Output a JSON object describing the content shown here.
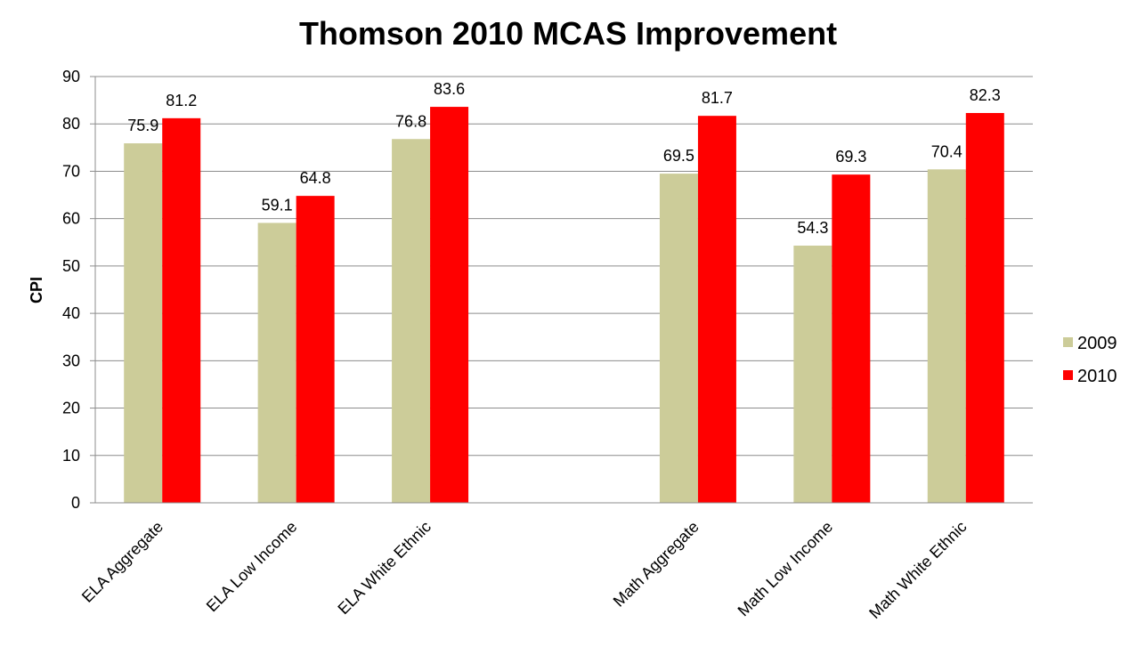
{
  "chart_data": {
    "type": "bar",
    "title": "Thomson 2010 MCAS Improvement",
    "ylabel": "CPI",
    "xlabel": "",
    "ylim": [
      0,
      90
    ],
    "yticks": [
      0,
      10,
      20,
      30,
      40,
      50,
      60,
      70,
      80,
      90
    ],
    "grid": true,
    "legend_position": "right",
    "categories": [
      "ELA Aggregate",
      "ELA Low Income",
      "ELA White Ethnic",
      "",
      "Math Aggregate",
      "Math Low Income",
      "Math White Ethnic"
    ],
    "series": [
      {
        "name": "2009",
        "color": "#cccc99",
        "values": [
          75.9,
          59.1,
          76.8,
          null,
          69.5,
          54.3,
          70.4
        ],
        "labels": [
          "75.9",
          "59.1",
          "76.8",
          "",
          "69.5",
          "54.3",
          "70.4"
        ]
      },
      {
        "name": "2010",
        "color": "#ff0000",
        "values": [
          81.2,
          64.8,
          83.6,
          null,
          81.7,
          69.3,
          82.3
        ],
        "labels": [
          "81.2",
          "64.8",
          "83.6",
          "",
          "81.7",
          "69.3",
          "82.3"
        ]
      }
    ]
  }
}
